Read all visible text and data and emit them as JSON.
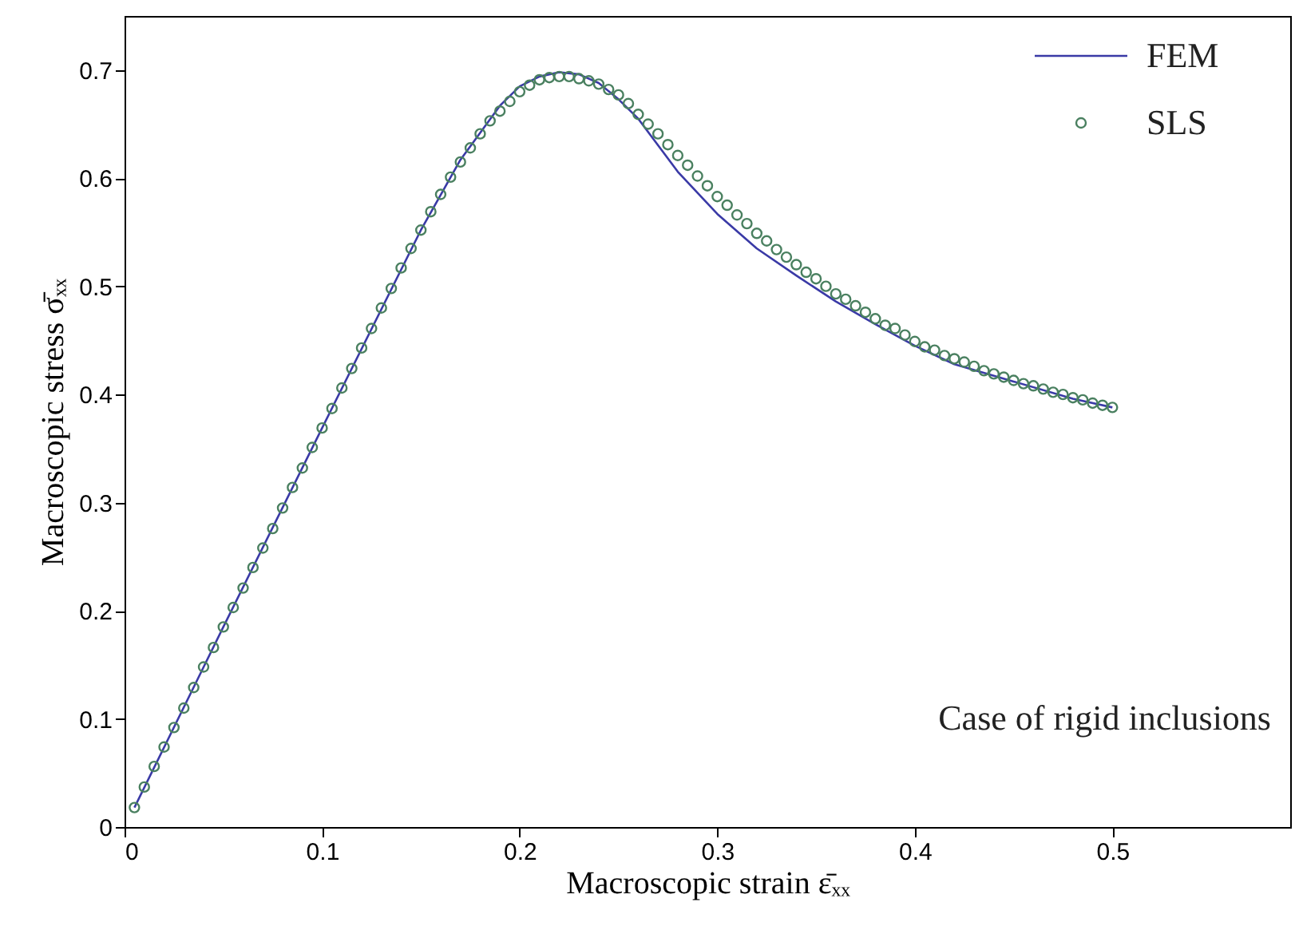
{
  "chart_data": {
    "type": "line",
    "xlabel": "Macroscopic strain ε̄ₓₓ",
    "ylabel": "Macroscopic stress σ̄ₓₓ",
    "annotations": [
      "Case of rigid inclusions"
    ],
    "xlim": [
      0,
      0.59
    ],
    "xticks": [
      0,
      0.1,
      0.2,
      0.3,
      0.4,
      0.5
    ],
    "ylim": [
      0,
      0.75
    ],
    "yticks": [
      0,
      0.1,
      0.2,
      0.3,
      0.4,
      0.5,
      0.6,
      0.7
    ],
    "grid": false,
    "legend": "top right",
    "series": [
      {
        "name": "FEM",
        "color": "#3a3aa6",
        "marker": "none",
        "line_style": "solid",
        "x": [
          0.005,
          0.05,
          0.1,
          0.15,
          0.17,
          0.19,
          0.2,
          0.21,
          0.22,
          0.23,
          0.24,
          0.25,
          0.26,
          0.28,
          0.3,
          0.32,
          0.34,
          0.36,
          0.38,
          0.4,
          0.42,
          0.45,
          0.48,
          0.5
        ],
        "values": [
          0.018,
          0.185,
          0.369,
          0.552,
          0.617,
          0.667,
          0.685,
          0.694,
          0.698,
          0.696,
          0.688,
          0.673,
          0.655,
          0.606,
          0.567,
          0.535,
          0.51,
          0.486,
          0.465,
          0.445,
          0.428,
          0.412,
          0.396,
          0.388
        ]
      },
      {
        "name": "SLS",
        "type": "scatter",
        "color": "#4a8060",
        "marker": "circle",
        "x": [
          0.005,
          0.01,
          0.015,
          0.02,
          0.025,
          0.03,
          0.035,
          0.04,
          0.045,
          0.05,
          0.055,
          0.06,
          0.065,
          0.07,
          0.075,
          0.08,
          0.085,
          0.09,
          0.095,
          0.1,
          0.105,
          0.11,
          0.115,
          0.12,
          0.125,
          0.13,
          0.135,
          0.14,
          0.145,
          0.15,
          0.155,
          0.16,
          0.165,
          0.17,
          0.175,
          0.18,
          0.185,
          0.19,
          0.195,
          0.2,
          0.205,
          0.21,
          0.215,
          0.22,
          0.225,
          0.23,
          0.235,
          0.24,
          0.245,
          0.25,
          0.255,
          0.26,
          0.265,
          0.27,
          0.275,
          0.28,
          0.285,
          0.29,
          0.295,
          0.3,
          0.305,
          0.31,
          0.315,
          0.32,
          0.325,
          0.33,
          0.335,
          0.34,
          0.345,
          0.35,
          0.355,
          0.36,
          0.365,
          0.37,
          0.375,
          0.38,
          0.385,
          0.39,
          0.395,
          0.4,
          0.405,
          0.41,
          0.415,
          0.42,
          0.425,
          0.43,
          0.435,
          0.44,
          0.445,
          0.45,
          0.455,
          0.46,
          0.465,
          0.47,
          0.475,
          0.48,
          0.485,
          0.49,
          0.495,
          0.5
        ],
        "values": [
          0.018,
          0.037,
          0.056,
          0.074,
          0.092,
          0.11,
          0.129,
          0.148,
          0.166,
          0.185,
          0.203,
          0.221,
          0.24,
          0.258,
          0.276,
          0.295,
          0.314,
          0.332,
          0.351,
          0.369,
          0.387,
          0.406,
          0.424,
          0.443,
          0.461,
          0.48,
          0.498,
          0.517,
          0.535,
          0.552,
          0.569,
          0.585,
          0.601,
          0.615,
          0.628,
          0.641,
          0.653,
          0.662,
          0.671,
          0.68,
          0.686,
          0.691,
          0.693,
          0.694,
          0.694,
          0.692,
          0.69,
          0.687,
          0.682,
          0.677,
          0.669,
          0.659,
          0.65,
          0.641,
          0.631,
          0.621,
          0.612,
          0.602,
          0.593,
          0.583,
          0.575,
          0.566,
          0.558,
          0.549,
          0.542,
          0.534,
          0.527,
          0.52,
          0.513,
          0.507,
          0.5,
          0.493,
          0.488,
          0.482,
          0.476,
          0.47,
          0.464,
          0.461,
          0.455,
          0.449,
          0.444,
          0.441,
          0.436,
          0.433,
          0.43,
          0.426,
          0.422,
          0.419,
          0.416,
          0.413,
          0.41,
          0.408,
          0.405,
          0.402,
          0.4,
          0.397,
          0.395,
          0.392,
          0.39,
          0.388
        ]
      }
    ]
  }
}
